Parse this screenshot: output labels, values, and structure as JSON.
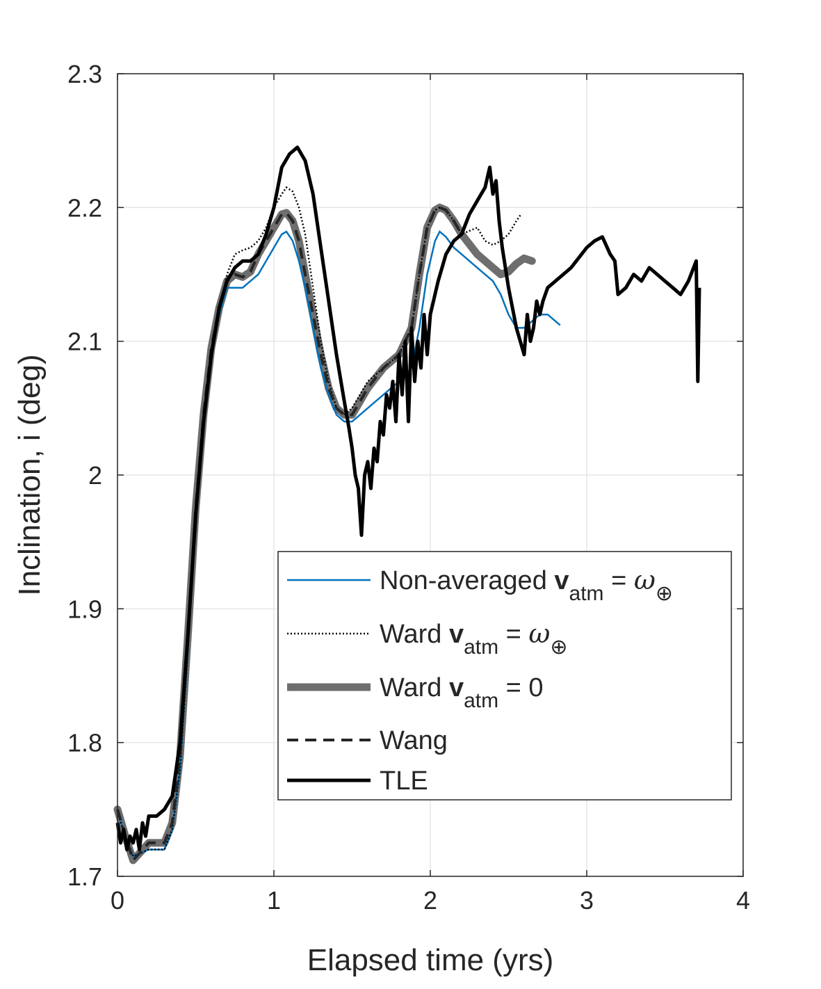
{
  "colors": {
    "non_averaged": "#0072BD",
    "ward_omega": "#000000",
    "ward_zero": "#6E6E6E",
    "wang": "#262626",
    "tle": "#000000",
    "grid": "#E6E6E6",
    "axes": "#262626"
  },
  "chart_data": {
    "type": "line",
    "title": "",
    "xlabel": "Elapsed time (yrs)",
    "ylabel": "Inclination, i (deg)",
    "xlim": [
      0,
      4
    ],
    "ylim": [
      1.7,
      2.3
    ],
    "xticks": [
      "0",
      "1",
      "2",
      "3",
      "4"
    ],
    "yticks": [
      "1.7",
      "1.8",
      "1.9",
      "2",
      "2.1",
      "2.2",
      "2.3"
    ],
    "grid": true,
    "legend_placement": "lower-right",
    "series": [
      {
        "key": "non_averaged",
        "legend_main": "Non-averaged ",
        "legend_bold": "v",
        "legend_sub": "atm",
        "legend_eq": " = ",
        "legend_sym": "ω",
        "legend_symsub": "⊕",
        "style": "solid-thin",
        "x": [
          0.0,
          0.05,
          0.1,
          0.2,
          0.3,
          0.35,
          0.4,
          0.45,
          0.5,
          0.55,
          0.6,
          0.65,
          0.7,
          0.75,
          0.8,
          0.85,
          0.9,
          0.95,
          1.0,
          1.05,
          1.08,
          1.12,
          1.16,
          1.2,
          1.25,
          1.3,
          1.35,
          1.4,
          1.45,
          1.5,
          1.55,
          1.6,
          1.7,
          1.8,
          1.88,
          1.93,
          1.98,
          2.03,
          2.06,
          2.1,
          2.15,
          2.2,
          2.3,
          2.4,
          2.45,
          2.5,
          2.55,
          2.6,
          2.65,
          2.7,
          2.75,
          2.8,
          2.83
        ],
        "y": [
          1.748,
          1.73,
          1.715,
          1.72,
          1.72,
          1.735,
          1.78,
          1.87,
          1.97,
          2.04,
          2.09,
          2.12,
          2.14,
          2.14,
          2.14,
          2.145,
          2.15,
          2.16,
          2.17,
          2.18,
          2.182,
          2.175,
          2.16,
          2.14,
          2.11,
          2.08,
          2.06,
          2.045,
          2.04,
          2.04,
          2.045,
          2.05,
          2.06,
          2.07,
          2.08,
          2.11,
          2.15,
          2.175,
          2.182,
          2.178,
          2.17,
          2.165,
          2.155,
          2.145,
          2.135,
          2.12,
          2.11,
          2.11,
          2.115,
          2.12,
          2.12,
          2.115,
          2.112
        ]
      },
      {
        "key": "ward_omega",
        "legend_main": "Ward ",
        "legend_bold": "v",
        "legend_sub": "atm",
        "legend_eq": " = ",
        "legend_sym": "ω",
        "legend_symsub": "⊕",
        "style": "dotted",
        "x": [
          0.0,
          0.05,
          0.1,
          0.2,
          0.3,
          0.35,
          0.4,
          0.45,
          0.5,
          0.55,
          0.6,
          0.65,
          0.7,
          0.75,
          0.8,
          0.85,
          0.9,
          0.95,
          1.0,
          1.05,
          1.08,
          1.12,
          1.16,
          1.2,
          1.25,
          1.3,
          1.35,
          1.4,
          1.45,
          1.5,
          1.55,
          1.6,
          1.7,
          1.8,
          1.88,
          1.93,
          1.98,
          2.03,
          2.06,
          2.1,
          2.15,
          2.2,
          2.3,
          2.35,
          2.4,
          2.45,
          2.5,
          2.55,
          2.58
        ],
        "y": [
          1.748,
          1.73,
          1.715,
          1.72,
          1.72,
          1.735,
          1.78,
          1.87,
          1.97,
          2.04,
          2.09,
          2.12,
          2.15,
          2.165,
          2.168,
          2.17,
          2.175,
          2.185,
          2.2,
          2.21,
          2.215,
          2.212,
          2.2,
          2.18,
          2.14,
          2.1,
          2.07,
          2.05,
          2.045,
          2.05,
          2.06,
          2.07,
          2.08,
          2.09,
          2.11,
          2.15,
          2.185,
          2.198,
          2.2,
          2.198,
          2.19,
          2.18,
          2.185,
          2.175,
          2.172,
          2.175,
          2.18,
          2.19,
          2.195
        ]
      },
      {
        "key": "ward_zero",
        "legend_main": "Ward ",
        "legend_bold": "v",
        "legend_sub": "atm",
        "legend_eq": " = 0",
        "legend_sym": "",
        "legend_symsub": "",
        "style": "thick-gray",
        "x": [
          0.0,
          0.05,
          0.1,
          0.2,
          0.3,
          0.35,
          0.4,
          0.45,
          0.5,
          0.55,
          0.6,
          0.65,
          0.7,
          0.75,
          0.8,
          0.85,
          0.9,
          0.95,
          1.0,
          1.05,
          1.08,
          1.12,
          1.16,
          1.2,
          1.25,
          1.3,
          1.35,
          1.4,
          1.45,
          1.5,
          1.55,
          1.6,
          1.7,
          1.8,
          1.88,
          1.93,
          1.98,
          2.03,
          2.06,
          2.1,
          2.15,
          2.2,
          2.3,
          2.4,
          2.45,
          2.5,
          2.55,
          2.6,
          2.65
        ],
        "y": [
          1.75,
          1.73,
          1.712,
          1.725,
          1.725,
          1.74,
          1.79,
          1.88,
          1.975,
          2.045,
          2.095,
          2.125,
          2.145,
          2.15,
          2.148,
          2.152,
          2.165,
          2.175,
          2.185,
          2.195,
          2.196,
          2.19,
          2.175,
          2.15,
          2.12,
          2.09,
          2.065,
          2.05,
          2.045,
          2.045,
          2.055,
          2.065,
          2.08,
          2.09,
          2.11,
          2.15,
          2.185,
          2.198,
          2.2,
          2.198,
          2.19,
          2.18,
          2.165,
          2.155,
          2.15,
          2.152,
          2.158,
          2.162,
          2.16
        ]
      },
      {
        "key": "wang",
        "legend_main": "Wang",
        "legend_bold": "",
        "legend_sub": "",
        "legend_eq": "",
        "legend_sym": "",
        "legend_symsub": "",
        "style": "dashed",
        "x": [
          0.0,
          0.05,
          0.1,
          0.2,
          0.3,
          0.35,
          0.4,
          0.45,
          0.5,
          0.55,
          0.6,
          0.65,
          0.7,
          0.75,
          0.8,
          0.85,
          0.9,
          0.95,
          1.0,
          1.05,
          1.08,
          1.12,
          1.16,
          1.2,
          1.25,
          1.3,
          1.35,
          1.4,
          1.45,
          1.5,
          1.55,
          1.6,
          1.7,
          1.8,
          1.88,
          1.93,
          1.98,
          2.03,
          2.06,
          2.1,
          2.15,
          2.2
        ],
        "y": [
          1.75,
          1.73,
          1.712,
          1.725,
          1.725,
          1.74,
          1.79,
          1.88,
          1.975,
          2.045,
          2.095,
          2.125,
          2.145,
          2.15,
          2.148,
          2.152,
          2.165,
          2.175,
          2.185,
          2.195,
          2.196,
          2.19,
          2.175,
          2.15,
          2.12,
          2.09,
          2.065,
          2.05,
          2.045,
          2.045,
          2.055,
          2.065,
          2.08,
          2.09,
          2.11,
          2.15,
          2.185,
          2.198,
          2.2,
          2.198,
          2.19,
          2.18
        ]
      },
      {
        "key": "tle",
        "legend_main": "TLE",
        "legend_bold": "",
        "legend_sub": "",
        "legend_eq": "",
        "legend_sym": "",
        "legend_symsub": "",
        "style": "solid-thick",
        "x": [
          0.0,
          0.02,
          0.04,
          0.06,
          0.08,
          0.1,
          0.12,
          0.14,
          0.16,
          0.18,
          0.2,
          0.25,
          0.3,
          0.35,
          0.4,
          0.45,
          0.5,
          0.55,
          0.6,
          0.65,
          0.7,
          0.75,
          0.8,
          0.85,
          0.9,
          0.95,
          1.0,
          1.05,
          1.1,
          1.15,
          1.2,
          1.25,
          1.3,
          1.35,
          1.4,
          1.45,
          1.48,
          1.5,
          1.52,
          1.54,
          1.56,
          1.58,
          1.6,
          1.62,
          1.64,
          1.66,
          1.68,
          1.7,
          1.72,
          1.74,
          1.76,
          1.78,
          1.8,
          1.82,
          1.84,
          1.86,
          1.88,
          1.9,
          1.92,
          1.94,
          1.96,
          1.98,
          2.0,
          2.05,
          2.1,
          2.15,
          2.2,
          2.25,
          2.3,
          2.35,
          2.38,
          2.4,
          2.42,
          2.44,
          2.46,
          2.5,
          2.55,
          2.6,
          2.62,
          2.64,
          2.66,
          2.68,
          2.7,
          2.72,
          2.75,
          2.8,
          2.85,
          2.9,
          3.0,
          3.05,
          3.1,
          3.15,
          3.18,
          3.2,
          3.25,
          3.3,
          3.35,
          3.4,
          3.45,
          3.5,
          3.55,
          3.6,
          3.65,
          3.7,
          3.71,
          3.72
        ],
        "y": [
          1.74,
          1.725,
          1.735,
          1.72,
          1.73,
          1.725,
          1.735,
          1.72,
          1.74,
          1.73,
          1.745,
          1.745,
          1.75,
          1.76,
          1.8,
          1.88,
          1.97,
          2.04,
          2.09,
          2.125,
          2.145,
          2.155,
          2.16,
          2.16,
          2.165,
          2.18,
          2.2,
          2.23,
          2.24,
          2.245,
          2.235,
          2.21,
          2.17,
          2.13,
          2.09,
          2.055,
          2.035,
          2.02,
          2.0,
          1.99,
          1.955,
          2.0,
          2.01,
          1.99,
          2.02,
          2.01,
          2.04,
          2.03,
          2.06,
          2.05,
          2.07,
          2.04,
          2.09,
          2.06,
          2.1,
          2.04,
          2.11,
          2.07,
          2.1,
          2.08,
          2.12,
          2.09,
          2.12,
          2.145,
          2.165,
          2.175,
          2.18,
          2.195,
          2.205,
          2.215,
          2.23,
          2.21,
          2.22,
          2.19,
          2.17,
          2.14,
          2.11,
          2.09,
          2.12,
          2.1,
          2.11,
          2.13,
          2.12,
          2.13,
          2.14,
          2.145,
          2.15,
          2.155,
          2.17,
          2.175,
          2.178,
          2.165,
          2.16,
          2.135,
          2.14,
          2.15,
          2.145,
          2.155,
          2.15,
          2.145,
          2.14,
          2.135,
          2.145,
          2.16,
          2.07,
          2.14
        ]
      }
    ]
  }
}
